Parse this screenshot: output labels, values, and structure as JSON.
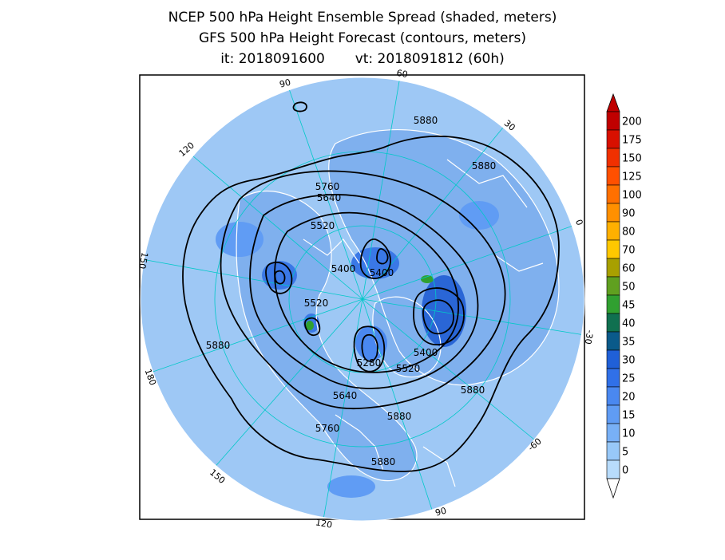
{
  "title": {
    "line1": "NCEP 500 hPa Height Ensemble Spread (shaded, meters)",
    "line2": "GFS 500 hPa Height Forecast (contours, meters)",
    "line3": "it: 2018091600       vt: 2018091812 (60h)"
  },
  "map": {
    "projection": "polar-stereographic-north",
    "colors": {
      "ocean_spread": "#9ec8f5",
      "land_spread": "#7fb0ee",
      "coast": "#ffffff",
      "grid": "#00c8c8",
      "contour": "#000000"
    },
    "longitude_labels": [
      "60",
      "30",
      "0",
      "-30",
      "-60",
      "90",
      "120",
      "150",
      "180",
      "150",
      "120",
      "90"
    ],
    "contour_labels": [
      "5880",
      "5880",
      "5760",
      "5640",
      "5520",
      "5400",
      "5400",
      "5520",
      "5400",
      "5280",
      "5520",
      "5640",
      "5760",
      "5880",
      "5880",
      "5880",
      "5880"
    ]
  },
  "colorbar": {
    "labels": [
      "200",
      "175",
      "150",
      "125",
      "100",
      "90",
      "80",
      "70",
      "60",
      "50",
      "45",
      "40",
      "35",
      "30",
      "25",
      "20",
      "15",
      "10",
      "5",
      "0"
    ],
    "colors": [
      "#c00000",
      "#d81000",
      "#f03000",
      "#ff5000",
      "#ff7000",
      "#ff9000",
      "#ffb000",
      "#ffc800",
      "#a8a000",
      "#60a020",
      "#30a030",
      "#107050",
      "#0a5a8a",
      "#2060d8",
      "#3070e8",
      "#4a88f0",
      "#609cf4",
      "#78b0f6",
      "#98c8f8",
      "#b8dcfb"
    ]
  }
}
